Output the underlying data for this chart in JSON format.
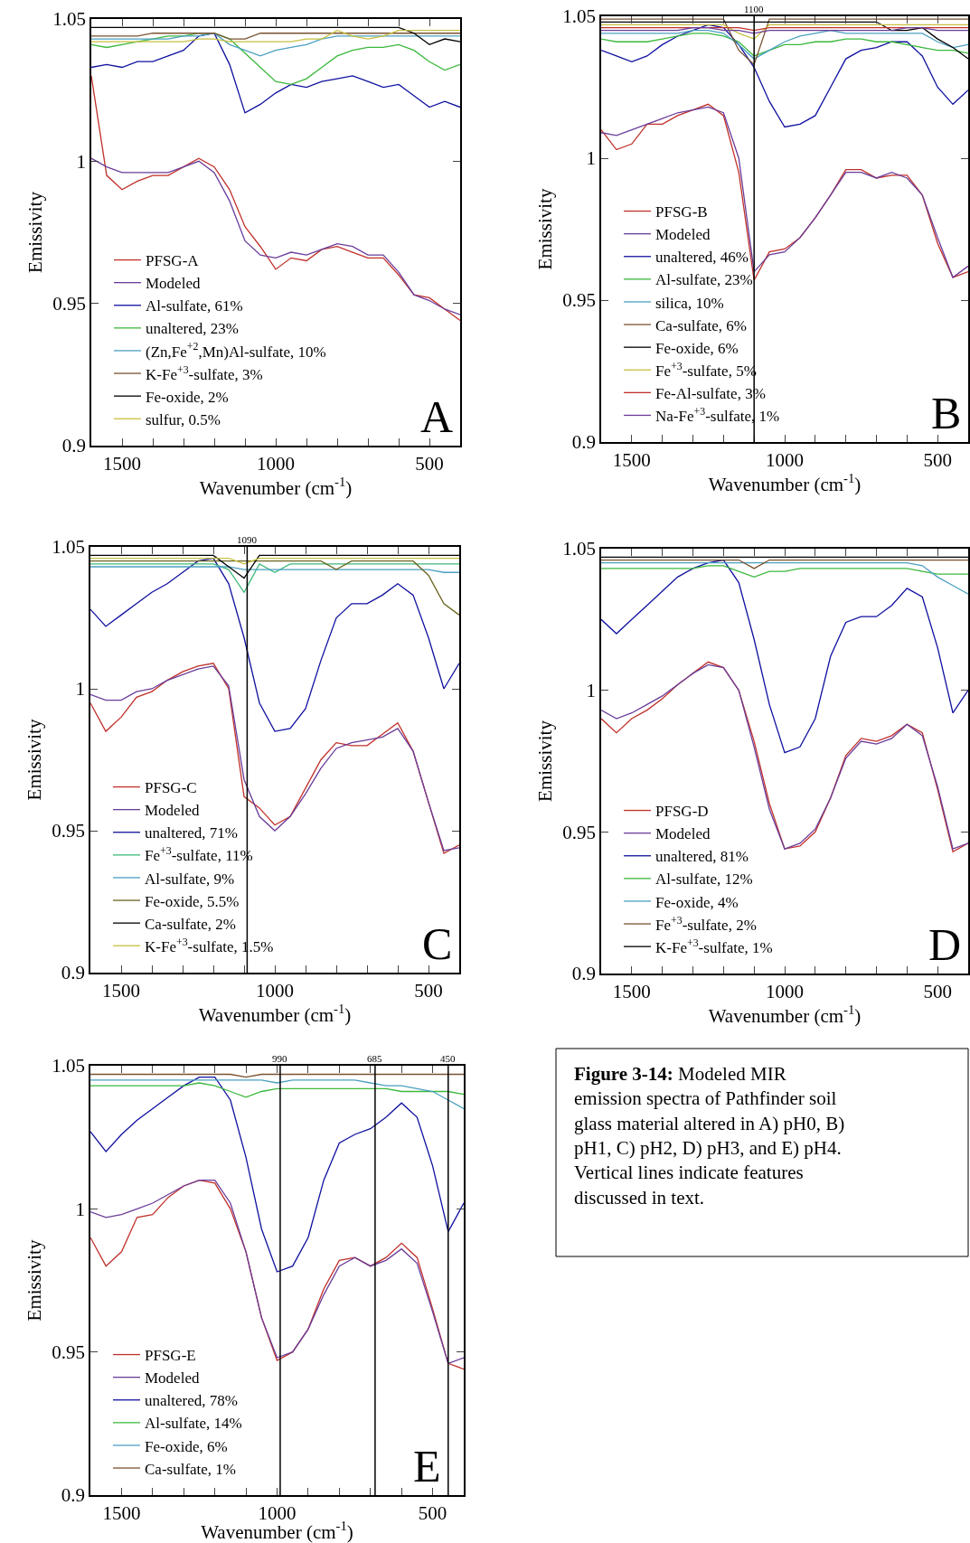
{
  "chart_data": [
    {
      "type": "line",
      "xlabel": "Wavenumber (cm$^{-1}$)",
      "ylabel": "Emissivity",
      "xlim": [
        1600,
        400
      ],
      "ylim": [
        0.9,
        1.05
      ],
      "xticks": [
        1500,
        1000,
        500,
        {
          "value": 1400,
          "label": null
        },
        {
          "value": 1300,
          "label": null
        },
        {
          "value": 1200,
          "label": null
        },
        {
          "value": 1100,
          "label": null
        },
        {
          "value": 900,
          "label": null
        },
        {
          "value": 800,
          "label": null
        },
        {
          "value": 700,
          "label": null
        },
        {
          "value": 600,
          "label": null
        }
      ],
      "yticks": [
        0.9,
        0.95,
        1,
        1.05
      ],
      "legend": "bottom left",
      "marker": "none",
      "line_style": "solid",
      "annotations": [
        "A"
      ],
      "x": [
        1600,
        1550,
        1500,
        1450,
        1400,
        1350,
        1300,
        1250,
        1200,
        1150,
        1100,
        1050,
        1000,
        950,
        900,
        850,
        800,
        750,
        700,
        650,
        600,
        550,
        500,
        450,
        400
      ],
      "series": [
        {
          "name": "PFSG-A",
          "color": "#c0302a",
          "values": [
            1.03,
            0.995,
            0.99,
            0.993,
            0.995,
            0.995,
            0.998,
            1.001,
            0.998,
            0.99,
            0.977,
            0.97,
            0.962,
            0.966,
            0.965,
            0.969,
            0.97,
            0.968,
            0.966,
            0.966,
            0.96,
            0.953,
            0.952,
            0.948,
            0.944
          ]
        },
        {
          "name": "Modeled",
          "color": "#6a3d9a",
          "values": [
            1.001,
            0.998,
            0.996,
            0.996,
            0.996,
            0.996,
            0.998,
            1.0,
            0.996,
            0.986,
            0.972,
            0.967,
            0.966,
            0.968,
            0.967,
            0.969,
            0.971,
            0.97,
            0.967,
            0.967,
            0.961,
            0.953,
            0.951,
            0.948,
            0.946
          ]
        },
        {
          "name": "Al-sulfate, 61%",
          "color": "#1010a0",
          "values": [
            1.033,
            1.034,
            1.033,
            1.035,
            1.035,
            1.037,
            1.039,
            1.044,
            1.045,
            1.034,
            1.017,
            1.02,
            1.024,
            1.027,
            1.026,
            1.028,
            1.029,
            1.03,
            1.028,
            1.026,
            1.027,
            1.023,
            1.019,
            1.021,
            1.019
          ]
        },
        {
          "name": "unaltered, 23%",
          "color": "#3cb83c",
          "values": [
            1.041,
            1.04,
            1.041,
            1.042,
            1.043,
            1.044,
            1.044,
            1.045,
            1.045,
            1.043,
            1.038,
            1.033,
            1.028,
            1.027,
            1.029,
            1.033,
            1.037,
            1.039,
            1.04,
            1.04,
            1.041,
            1.039,
            1.035,
            1.032,
            1.034
          ]
        },
        {
          "name": "(Zn,Fe$^{+2}$,Mn)Al-sulfate, 10%",
          "color": "#4aa0c0",
          "values": [
            1.043,
            1.043,
            1.043,
            1.043,
            1.043,
            1.043,
            1.044,
            1.044,
            1.045,
            1.041,
            1.039,
            1.037,
            1.039,
            1.04,
            1.041,
            1.043,
            1.044,
            1.044,
            1.044,
            1.044,
            1.044,
            1.044,
            1.044,
            1.044,
            1.044
          ]
        },
        {
          "name": "K-Fe$^{+3}$-sulfate, 3%",
          "color": "#7a5230",
          "values": [
            1.044,
            1.044,
            1.044,
            1.044,
            1.045,
            1.045,
            1.045,
            1.045,
            1.045,
            1.043,
            1.043,
            1.045,
            1.045,
            1.045,
            1.045,
            1.045,
            1.045,
            1.045,
            1.045,
            1.045,
            1.045,
            1.045,
            1.045,
            1.045,
            1.045
          ]
        },
        {
          "name": "Fe-oxide, 2%",
          "color": "#000000",
          "values": [
            1.047,
            1.047,
            1.047,
            1.047,
            1.047,
            1.047,
            1.047,
            1.047,
            1.047,
            1.047,
            1.047,
            1.047,
            1.047,
            1.047,
            1.047,
            1.047,
            1.047,
            1.047,
            1.047,
            1.047,
            1.047,
            1.045,
            1.041,
            1.043,
            1.042
          ]
        },
        {
          "name": "sulfur, 0.5%",
          "color": "#c8c040",
          "values": [
            1.042,
            1.042,
            1.042,
            1.042,
            1.042,
            1.042,
            1.042,
            1.043,
            1.043,
            1.042,
            1.042,
            1.042,
            1.042,
            1.042,
            1.043,
            1.043,
            1.046,
            1.044,
            1.043,
            1.044,
            1.046,
            1.046,
            1.046,
            1.046,
            1.046
          ]
        }
      ]
    },
    {
      "type": "line",
      "xlabel": "Wavenumber (cm$^{-1}$)",
      "ylabel": "Emissivity",
      "xlim": [
        1600,
        400
      ],
      "ylim": [
        0.9,
        1.05
      ],
      "xticks": [
        1500,
        1000,
        500,
        {
          "value": 1400,
          "label": null
        },
        {
          "value": 1300,
          "label": null
        },
        {
          "value": 1200,
          "label": null
        },
        {
          "value": 1100,
          "label": null
        },
        {
          "value": 900,
          "label": null
        },
        {
          "value": 800,
          "label": null
        },
        {
          "value": 700,
          "label": null
        },
        {
          "value": 600,
          "label": null
        }
      ],
      "yticks": [
        0.9,
        0.95,
        1,
        1.05
      ],
      "legend": "bottom left",
      "marker": "none",
      "line_style": "solid",
      "annotations": [
        "B"
      ],
      "ref_lines": [
        {
          "axis": "x",
          "value": 1100,
          "label": "1100",
          "color": "#000000"
        }
      ],
      "x": [
        1600,
        1550,
        1500,
        1450,
        1400,
        1350,
        1300,
        1250,
        1200,
        1150,
        1100,
        1050,
        1000,
        950,
        900,
        850,
        800,
        750,
        700,
        650,
        600,
        550,
        500,
        450,
        400
      ],
      "series": [
        {
          "name": "PFSG-B",
          "color": "#c0302a",
          "values": [
            1.01,
            1.003,
            1.005,
            1.012,
            1.012,
            1.015,
            1.017,
            1.019,
            1.015,
            0.995,
            0.957,
            0.967,
            0.968,
            0.972,
            0.979,
            0.987,
            0.996,
            0.996,
            0.993,
            0.994,
            0.994,
            0.987,
            0.97,
            0.958,
            0.96
          ]
        },
        {
          "name": "Modeled",
          "color": "#6a3d9a",
          "values": [
            1.009,
            1.008,
            1.01,
            1.012,
            1.014,
            1.016,
            1.017,
            1.018,
            1.016,
            1.0,
            0.96,
            0.966,
            0.967,
            0.972,
            0.979,
            0.987,
            0.995,
            0.995,
            0.993,
            0.995,
            0.993,
            0.987,
            0.972,
            0.958,
            0.962
          ]
        },
        {
          "name": "unaltered, 46%",
          "color": "#1010a0",
          "values": [
            1.038,
            1.036,
            1.034,
            1.036,
            1.04,
            1.043,
            1.045,
            1.047,
            1.046,
            1.04,
            1.032,
            1.02,
            1.011,
            1.012,
            1.015,
            1.025,
            1.035,
            1.038,
            1.039,
            1.041,
            1.041,
            1.036,
            1.025,
            1.019,
            1.024
          ]
        },
        {
          "name": "Al-sulfate, 23%",
          "color": "#3cb83c",
          "values": [
            1.042,
            1.041,
            1.041,
            1.041,
            1.042,
            1.043,
            1.044,
            1.044,
            1.043,
            1.041,
            1.036,
            1.038,
            1.04,
            1.04,
            1.041,
            1.041,
            1.042,
            1.042,
            1.041,
            1.041,
            1.04,
            1.039,
            1.038,
            1.038,
            1.037
          ]
        },
        {
          "name": "silica, 10%",
          "color": "#4aa0c0",
          "values": [
            1.044,
            1.044,
            1.044,
            1.044,
            1.044,
            1.044,
            1.045,
            1.045,
            1.044,
            1.04,
            1.035,
            1.038,
            1.041,
            1.043,
            1.044,
            1.045,
            1.044,
            1.044,
            1.044,
            1.044,
            1.044,
            1.044,
            1.041,
            1.039,
            1.04
          ]
        },
        {
          "name": "Ca-sulfate, 6%",
          "color": "#7a5230",
          "values": [
            1.049,
            1.049,
            1.049,
            1.049,
            1.049,
            1.049,
            1.049,
            1.049,
            1.049,
            1.038,
            1.033,
            1.049,
            1.049,
            1.049,
            1.049,
            1.049,
            1.049,
            1.049,
            1.049,
            1.049,
            1.049,
            1.049,
            1.049,
            1.049,
            1.049
          ]
        },
        {
          "name": "Fe-oxide, 6%",
          "color": "#000000",
          "values": [
            1.048,
            1.048,
            1.048,
            1.048,
            1.048,
            1.048,
            1.048,
            1.048,
            1.048,
            1.048,
            1.048,
            1.048,
            1.048,
            1.048,
            1.048,
            1.048,
            1.048,
            1.048,
            1.048,
            1.045,
            1.045,
            1.046,
            1.042,
            1.039,
            1.035
          ]
        },
        {
          "name": "Fe$^{+3}$-sulfate, 5%",
          "color": "#c8c040",
          "values": [
            1.047,
            1.047,
            1.047,
            1.047,
            1.047,
            1.047,
            1.047,
            1.047,
            1.047,
            1.044,
            1.042,
            1.047,
            1.047,
            1.047,
            1.047,
            1.047,
            1.047,
            1.047,
            1.047,
            1.047,
            1.047,
            1.047,
            1.047,
            1.047,
            1.047
          ]
        },
        {
          "name": "Fe-Al-sulfate, 3%",
          "color": "#c0302a",
          "values": [
            1.046,
            1.046,
            1.046,
            1.046,
            1.046,
            1.046,
            1.046,
            1.046,
            1.046,
            1.046,
            1.045,
            1.046,
            1.046,
            1.046,
            1.046,
            1.046,
            1.046,
            1.046,
            1.046,
            1.046,
            1.046,
            1.046,
            1.046,
            1.046,
            1.046
          ]
        },
        {
          "name": "Na-Fe$^{+3}$-sulfate, 1%",
          "color": "#6a3d9a",
          "values": [
            1.045,
            1.045,
            1.045,
            1.045,
            1.045,
            1.045,
            1.046,
            1.046,
            1.045,
            1.045,
            1.044,
            1.045,
            1.045,
            1.045,
            1.045,
            1.045,
            1.045,
            1.045,
            1.045,
            1.045,
            1.046,
            1.046,
            1.045,
            1.045,
            1.045
          ]
        }
      ]
    },
    {
      "type": "line",
      "xlabel": "Wavenumber (cm$^{-1}$)",
      "ylabel": "Emissivity",
      "xlim": [
        1600,
        400
      ],
      "ylim": [
        0.9,
        1.05
      ],
      "xticks": [
        1500,
        1000,
        500,
        {
          "value": 1400,
          "label": null
        },
        {
          "value": 1300,
          "label": null
        },
        {
          "value": 1200,
          "label": null
        },
        {
          "value": 1100,
          "label": null
        },
        {
          "value": 900,
          "label": null
        },
        {
          "value": 800,
          "label": null
        },
        {
          "value": 700,
          "label": null
        },
        {
          "value": 600,
          "label": null
        }
      ],
      "yticks": [
        0.9,
        0.95,
        1,
        1.05
      ],
      "legend": "bottom left",
      "marker": "none",
      "line_style": "solid",
      "annotations": [
        "C"
      ],
      "ref_lines": [
        {
          "axis": "x",
          "value": 1090,
          "label": "1090",
          "color": "#000000"
        }
      ],
      "x": [
        1600,
        1550,
        1500,
        1450,
        1400,
        1350,
        1300,
        1250,
        1200,
        1150,
        1100,
        1050,
        1000,
        950,
        900,
        850,
        800,
        750,
        700,
        650,
        600,
        550,
        500,
        450,
        400
      ],
      "series": [
        {
          "name": "PFSG-C",
          "color": "#c0302a",
          "values": [
            0.995,
            0.985,
            0.99,
            0.997,
            0.999,
            1.003,
            1.006,
            1.008,
            1.009,
            1.0,
            0.962,
            0.958,
            0.952,
            0.955,
            0.965,
            0.975,
            0.981,
            0.98,
            0.98,
            0.984,
            0.988,
            0.978,
            0.96,
            0.942,
            0.945
          ]
        },
        {
          "name": "Modeled",
          "color": "#6a3d9a",
          "values": [
            0.998,
            0.996,
            0.996,
            0.999,
            1.0,
            1.003,
            1.005,
            1.007,
            1.008,
            1.001,
            0.968,
            0.955,
            0.95,
            0.955,
            0.963,
            0.972,
            0.979,
            0.981,
            0.982,
            0.983,
            0.986,
            0.978,
            0.96,
            0.943,
            0.944
          ]
        },
        {
          "name": "unaltered, 71%",
          "color": "#1010a0",
          "values": [
            1.028,
            1.022,
            1.026,
            1.03,
            1.034,
            1.037,
            1.041,
            1.045,
            1.046,
            1.037,
            1.018,
            0.995,
            0.985,
            0.986,
            0.993,
            1.01,
            1.025,
            1.03,
            1.03,
            1.033,
            1.037,
            1.033,
            1.018,
            1.0,
            1.009
          ]
        },
        {
          "name": "Fe$^{+3}$-sulfate, 11%",
          "color": "#3cb878",
          "values": [
            1.044,
            1.044,
            1.044,
            1.044,
            1.044,
            1.044,
            1.044,
            1.044,
            1.044,
            1.042,
            1.034,
            1.044,
            1.041,
            1.044,
            1.044,
            1.044,
            1.044,
            1.044,
            1.044,
            1.044,
            1.044,
            1.044,
            1.044,
            1.044,
            1.044
          ]
        },
        {
          "name": "Al-sulfate, 9%",
          "color": "#4aa0c0",
          "values": [
            1.043,
            1.043,
            1.043,
            1.043,
            1.043,
            1.043,
            1.043,
            1.043,
            1.043,
            1.043,
            1.042,
            1.042,
            1.042,
            1.042,
            1.042,
            1.042,
            1.042,
            1.042,
            1.042,
            1.042,
            1.042,
            1.042,
            1.042,
            1.041,
            1.041
          ]
        },
        {
          "name": "Fe-oxide, 5.5%",
          "color": "#6b6420",
          "values": [
            1.045,
            1.045,
            1.045,
            1.045,
            1.045,
            1.045,
            1.045,
            1.045,
            1.045,
            1.045,
            1.045,
            1.045,
            1.045,
            1.045,
            1.045,
            1.045,
            1.042,
            1.045,
            1.045,
            1.045,
            1.045,
            1.045,
            1.04,
            1.03,
            1.026
          ]
        },
        {
          "name": "Ca-sulfate, 2%",
          "color": "#000000",
          "values": [
            1.047,
            1.047,
            1.047,
            1.047,
            1.047,
            1.047,
            1.047,
            1.047,
            1.047,
            1.043,
            1.039,
            1.047,
            1.047,
            1.047,
            1.047,
            1.047,
            1.047,
            1.047,
            1.047,
            1.047,
            1.047,
            1.047,
            1.047,
            1.047,
            1.047
          ]
        },
        {
          "name": "K-Fe$^{+3}$-sulfate, 1.5%",
          "color": "#c8c040",
          "values": [
            1.046,
            1.046,
            1.046,
            1.046,
            1.046,
            1.046,
            1.046,
            1.046,
            1.046,
            1.046,
            1.044,
            1.046,
            1.046,
            1.046,
            1.046,
            1.046,
            1.046,
            1.046,
            1.046,
            1.046,
            1.046,
            1.046,
            1.046,
            1.046,
            1.046
          ]
        }
      ]
    },
    {
      "type": "line",
      "xlabel": "Wavenumber (cm$^{-1}$)",
      "ylabel": "Emissivity",
      "xlim": [
        1600,
        400
      ],
      "ylim": [
        0.9,
        1.05
      ],
      "xticks": [
        1500,
        1000,
        500,
        {
          "value": 1400,
          "label": null
        },
        {
          "value": 1300,
          "label": null
        },
        {
          "value": 1200,
          "label": null
        },
        {
          "value": 1100,
          "label": null
        },
        {
          "value": 900,
          "label": null
        },
        {
          "value": 800,
          "label": null
        },
        {
          "value": 700,
          "label": null
        },
        {
          "value": 600,
          "label": null
        }
      ],
      "yticks": [
        0.9,
        0.95,
        1,
        1.05
      ],
      "legend": "bottom left",
      "marker": "none",
      "line_style": "solid",
      "annotations": [
        "D"
      ],
      "x": [
        1600,
        1550,
        1500,
        1450,
        1400,
        1350,
        1300,
        1250,
        1200,
        1150,
        1100,
        1050,
        1000,
        950,
        900,
        850,
        800,
        750,
        700,
        650,
        600,
        550,
        500,
        450,
        400
      ],
      "series": [
        {
          "name": "PFSG-D",
          "color": "#c0302a",
          "values": [
            0.99,
            0.985,
            0.99,
            0.993,
            0.997,
            1.002,
            1.006,
            1.01,
            1.008,
            1.0,
            0.982,
            0.96,
            0.944,
            0.945,
            0.95,
            0.962,
            0.977,
            0.983,
            0.982,
            0.984,
            0.988,
            0.985,
            0.965,
            0.943,
            0.946
          ]
        },
        {
          "name": "Modeled",
          "color": "#6a3d9a",
          "values": [
            0.993,
            0.99,
            0.992,
            0.995,
            0.998,
            1.002,
            1.006,
            1.009,
            1.008,
            1.0,
            0.98,
            0.958,
            0.944,
            0.946,
            0.951,
            0.962,
            0.976,
            0.982,
            0.981,
            0.983,
            0.988,
            0.984,
            0.966,
            0.944,
            0.946
          ]
        },
        {
          "name": "unaltered, 81%",
          "color": "#1010a0",
          "values": [
            1.025,
            1.02,
            1.025,
            1.03,
            1.035,
            1.04,
            1.043,
            1.045,
            1.046,
            1.038,
            1.018,
            0.995,
            0.978,
            0.98,
            0.99,
            1.012,
            1.024,
            1.026,
            1.026,
            1.03,
            1.036,
            1.033,
            1.015,
            0.992,
            1.0
          ]
        },
        {
          "name": "Al-sulfate, 12%",
          "color": "#3cb83c",
          "values": [
            1.043,
            1.043,
            1.043,
            1.043,
            1.043,
            1.043,
            1.043,
            1.044,
            1.044,
            1.042,
            1.04,
            1.042,
            1.042,
            1.043,
            1.043,
            1.043,
            1.043,
            1.043,
            1.043,
            1.043,
            1.043,
            1.042,
            1.041,
            1.041,
            1.041
          ]
        },
        {
          "name": "Fe-oxide, 4%",
          "color": "#4aa0c0",
          "values": [
            1.045,
            1.045,
            1.045,
            1.045,
            1.045,
            1.045,
            1.045,
            1.045,
            1.045,
            1.045,
            1.045,
            1.045,
            1.045,
            1.045,
            1.045,
            1.045,
            1.045,
            1.045,
            1.045,
            1.045,
            1.045,
            1.044,
            1.04,
            1.037,
            1.034
          ]
        },
        {
          "name": "Fe$^{+3}$-sulfate, 2%",
          "color": "#7a5230",
          "values": [
            1.046,
            1.046,
            1.046,
            1.046,
            1.046,
            1.046,
            1.046,
            1.046,
            1.046,
            1.046,
            1.043,
            1.046,
            1.046,
            1.046,
            1.046,
            1.046,
            1.046,
            1.046,
            1.046,
            1.046,
            1.046,
            1.046,
            1.046,
            1.046,
            1.046
          ]
        },
        {
          "name": "K-Fe$^{+3}$-sulfate, 1%",
          "color": "#000000",
          "values": [
            1.047,
            1.047,
            1.047,
            1.047,
            1.047,
            1.047,
            1.047,
            1.047,
            1.047,
            1.047,
            1.047,
            1.047,
            1.047,
            1.047,
            1.047,
            1.047,
            1.047,
            1.047,
            1.047,
            1.047,
            1.047,
            1.047,
            1.047,
            1.047,
            1.047
          ]
        }
      ]
    },
    {
      "type": "line",
      "xlabel": "Wavenumber (cm$^{-1}$)",
      "ylabel": "Emissivity",
      "xlim": [
        1600,
        400
      ],
      "ylim": [
        0.9,
        1.05
      ],
      "xticks": [
        1500,
        1000,
        500,
        {
          "value": 1400,
          "label": null
        },
        {
          "value": 1300,
          "label": null
        },
        {
          "value": 1200,
          "label": null
        },
        {
          "value": 1100,
          "label": null
        },
        {
          "value": 900,
          "label": null
        },
        {
          "value": 800,
          "label": null
        },
        {
          "value": 700,
          "label": null
        },
        {
          "value": 600,
          "label": null
        }
      ],
      "yticks": [
        0.9,
        0.95,
        1,
        1.05
      ],
      "legend": "bottom left",
      "marker": "none",
      "line_style": "solid",
      "annotations": [
        "E"
      ],
      "ref_lines": [
        {
          "axis": "x",
          "value": 990,
          "label": "990",
          "color": "#000000"
        },
        {
          "axis": "x",
          "value": 685,
          "label": "685",
          "color": "#000000"
        },
        {
          "axis": "x",
          "value": 450,
          "label": "450",
          "color": "#000000"
        }
      ],
      "x": [
        1600,
        1550,
        1500,
        1450,
        1400,
        1350,
        1300,
        1250,
        1200,
        1150,
        1100,
        1050,
        1000,
        950,
        900,
        850,
        800,
        750,
        700,
        650,
        600,
        550,
        500,
        450,
        400
      ],
      "series": [
        {
          "name": "PFSG-E",
          "color": "#c0302a",
          "values": [
            0.99,
            0.98,
            0.985,
            0.997,
            0.998,
            1.004,
            1.008,
            1.01,
            1.009,
            1.0,
            0.985,
            0.962,
            0.947,
            0.95,
            0.958,
            0.972,
            0.982,
            0.983,
            0.98,
            0.983,
            0.988,
            0.983,
            0.965,
            0.946,
            0.944
          ]
        },
        {
          "name": "Modeled",
          "color": "#6a3d9a",
          "values": [
            0.999,
            0.997,
            0.998,
            1.0,
            1.002,
            1.005,
            1.008,
            1.01,
            1.01,
            1.002,
            0.985,
            0.962,
            0.948,
            0.95,
            0.958,
            0.97,
            0.98,
            0.983,
            0.98,
            0.982,
            0.986,
            0.981,
            0.964,
            0.946,
            0.948
          ]
        },
        {
          "name": "unaltered, 78%",
          "color": "#1010a0",
          "values": [
            1.027,
            1.02,
            1.026,
            1.031,
            1.035,
            1.039,
            1.043,
            1.046,
            1.046,
            1.038,
            1.018,
            0.993,
            0.978,
            0.98,
            0.99,
            1.01,
            1.023,
            1.026,
            1.028,
            1.032,
            1.037,
            1.032,
            1.015,
            0.992,
            1.002
          ]
        },
        {
          "name": "Al-sulfate, 14%",
          "color": "#3cb83c",
          "values": [
            1.043,
            1.043,
            1.043,
            1.043,
            1.043,
            1.043,
            1.043,
            1.044,
            1.043,
            1.041,
            1.039,
            1.041,
            1.042,
            1.042,
            1.042,
            1.042,
            1.042,
            1.042,
            1.042,
            1.042,
            1.041,
            1.041,
            1.041,
            1.041,
            1.04
          ]
        },
        {
          "name": "Fe-oxide, 6%",
          "color": "#4aa0c0",
          "values": [
            1.045,
            1.045,
            1.045,
            1.045,
            1.045,
            1.045,
            1.045,
            1.045,
            1.045,
            1.045,
            1.045,
            1.045,
            1.044,
            1.045,
            1.045,
            1.045,
            1.045,
            1.045,
            1.044,
            1.043,
            1.043,
            1.042,
            1.041,
            1.038,
            1.035
          ]
        },
        {
          "name": "Ca-sulfate, 1%",
          "color": "#7a5230",
          "values": [
            1.047,
            1.047,
            1.047,
            1.047,
            1.047,
            1.047,
            1.047,
            1.047,
            1.047,
            1.047,
            1.046,
            1.047,
            1.047,
            1.047,
            1.047,
            1.047,
            1.047,
            1.047,
            1.047,
            1.047,
            1.047,
            1.047,
            1.047,
            1.047,
            1.047
          ]
        }
      ]
    },
    {
      "type": "other",
      "title": "Figure 3-14:",
      "annotations": [
        "Modeled MIR emission spectra of Pathfinder soil glass material altered in A) pH0, B) pH1, C) pH2, D) pH3, and E) pH4. Vertical lines indicate features discussed in text."
      ]
    }
  ]
}
